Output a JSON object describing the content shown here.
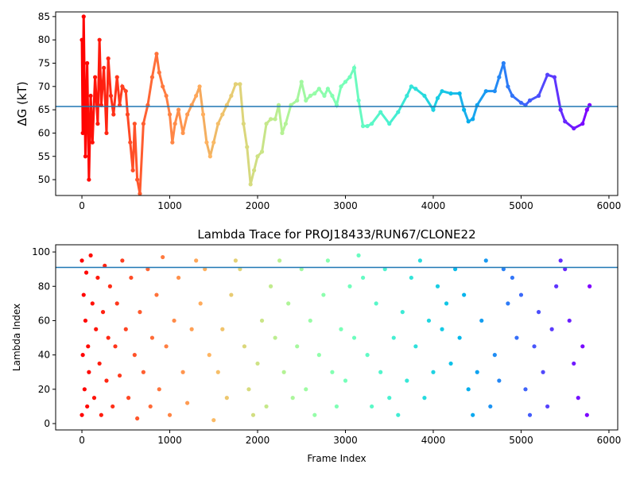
{
  "chart_data": [
    {
      "type": "scatter",
      "ylabel": "ΔG (kT)",
      "colormap": "rainbow_r",
      "hline": 65.7,
      "hline_color": "#1f77b4",
      "xlim": [
        -299,
        6100
      ],
      "ylim": [
        46.6,
        86.0
      ],
      "xticks": [
        0,
        1000,
        2000,
        3000,
        4000,
        5000,
        6000
      ],
      "yticks": [
        50,
        55,
        60,
        65,
        70,
        75,
        80,
        85
      ],
      "x": [
        0,
        10,
        20,
        30,
        40,
        50,
        60,
        80,
        100,
        120,
        150,
        180,
        200,
        220,
        250,
        280,
        300,
        330,
        360,
        400,
        430,
        460,
        500,
        520,
        550,
        580,
        600,
        630,
        660,
        700,
        750,
        800,
        850,
        880,
        920,
        960,
        1000,
        1030,
        1060,
        1100,
        1150,
        1200,
        1250,
        1300,
        1340,
        1380,
        1420,
        1460,
        1500,
        1550,
        1600,
        1650,
        1700,
        1750,
        1800,
        1840,
        1880,
        1920,
        1960,
        2000,
        2050,
        2100,
        2150,
        2200,
        2240,
        2280,
        2320,
        2380,
        2450,
        2500,
        2550,
        2600,
        2650,
        2700,
        2760,
        2800,
        2850,
        2900,
        2950,
        3000,
        3050,
        3100,
        3150,
        3200,
        3250,
        3300,
        3400,
        3500,
        3600,
        3700,
        3750,
        3800,
        3900,
        4000,
        4050,
        4100,
        4200,
        4300,
        4350,
        4400,
        4450,
        4500,
        4600,
        4700,
        4750,
        4800,
        4850,
        4900,
        5000,
        5050,
        5100,
        5200,
        5300,
        5380,
        5450,
        5500,
        5600,
        5700,
        5750,
        5780
      ],
      "values": [
        80,
        60,
        85,
        70,
        55,
        65,
        75,
        50,
        68,
        58,
        72,
        62,
        80,
        66,
        74,
        60,
        76,
        68,
        64,
        72,
        66,
        70,
        69,
        64,
        58,
        52,
        62,
        50,
        47,
        62,
        66,
        72,
        77,
        73,
        70,
        68,
        64,
        58,
        62,
        65,
        60,
        64,
        66,
        68,
        70,
        64,
        58,
        55,
        58,
        62,
        64,
        66,
        68,
        70.5,
        70.5,
        62,
        57,
        49,
        52,
        55,
        56,
        62,
        63,
        63,
        66,
        60,
        62,
        66,
        67,
        71,
        67,
        68,
        68.5,
        69.5,
        68,
        69.5,
        68,
        66,
        70,
        71,
        72,
        74,
        67,
        61.5,
        61.5,
        62,
        64.5,
        62,
        64.5,
        68,
        70,
        69.5,
        68,
        65,
        67.5,
        69,
        68.5,
        68.5,
        65,
        62.5,
        63,
        66,
        69,
        69,
        72,
        75,
        70,
        68,
        66.5,
        66,
        67,
        68,
        72.5,
        72,
        65,
        62.5,
        61,
        62,
        65,
        66
      ]
    },
    {
      "type": "scatter",
      "title": "Lambda Trace for PROJ18433/RUN67/CLONE22",
      "xlabel": "Frame Index",
      "ylabel": "Lambda Index",
      "colormap": "rainbow_r",
      "hline": 91,
      "hline_color": "#1f77b4",
      "xlim": [
        -299,
        6100
      ],
      "ylim": [
        -3.7,
        104.2
      ],
      "xticks": [
        0,
        1000,
        2000,
        3000,
        4000,
        5000,
        6000
      ],
      "yticks": [
        0,
        20,
        40,
        60,
        80,
        100
      ],
      "x": [
        0,
        0,
        10,
        20,
        30,
        40,
        50,
        60,
        70,
        80,
        100,
        120,
        140,
        160,
        180,
        200,
        220,
        240,
        260,
        280,
        300,
        320,
        350,
        380,
        400,
        430,
        460,
        500,
        530,
        560,
        600,
        630,
        660,
        700,
        750,
        780,
        800,
        850,
        880,
        920,
        960,
        1000,
        1050,
        1100,
        1150,
        1200,
        1250,
        1300,
        1350,
        1400,
        1450,
        1500,
        1550,
        1600,
        1650,
        1700,
        1750,
        1800,
        1850,
        1900,
        1950,
        2000,
        2050,
        2100,
        2150,
        2200,
        2250,
        2300,
        2350,
        2400,
        2450,
        2500,
        2550,
        2600,
        2650,
        2700,
        2750,
        2800,
        2850,
        2900,
        2950,
        3000,
        3050,
        3100,
        3150,
        3200,
        3250,
        3300,
        3350,
        3400,
        3450,
        3500,
        3550,
        3600,
        3650,
        3700,
        3750,
        3800,
        3850,
        3900,
        3950,
        4000,
        4050,
        4100,
        4150,
        4200,
        4250,
        4300,
        4350,
        4400,
        4450,
        4500,
        4550,
        4600,
        4650,
        4700,
        4750,
        4800,
        4850,
        4900,
        4950,
        5000,
        5050,
        5100,
        5150,
        5200,
        5250,
        5300,
        5350,
        5400,
        5450,
        5500,
        5550,
        5600,
        5650,
        5700,
        5750,
        5780
      ],
      "values": [
        5,
        95,
        40,
        75,
        20,
        60,
        88,
        10,
        45,
        30,
        98,
        70,
        15,
        55,
        85,
        35,
        5,
        65,
        92,
        25,
        50,
        80,
        10,
        45,
        70,
        28,
        95,
        55,
        15,
        85,
        40,
        3,
        65,
        30,
        90,
        10,
        50,
        75,
        20,
        97,
        45,
        5,
        60,
        85,
        30,
        12,
        55,
        95,
        70,
        90,
        40,
        2,
        30,
        55,
        15,
        75,
        95,
        90,
        45,
        20,
        5,
        35,
        60,
        10,
        80,
        50,
        95,
        30,
        70,
        15,
        45,
        90,
        20,
        60,
        5,
        40,
        75,
        95,
        30,
        10,
        55,
        25,
        80,
        50,
        98,
        85,
        40,
        10,
        70,
        30,
        90,
        15,
        50,
        5,
        65,
        25,
        85,
        45,
        95,
        15,
        60,
        30,
        80,
        55,
        70,
        35,
        90,
        50,
        75,
        20,
        5,
        30,
        60,
        95,
        10,
        40,
        25,
        90,
        70,
        85,
        50,
        75,
        20,
        5,
        45,
        65,
        30,
        10,
        55,
        80,
        95,
        90,
        60,
        35,
        15,
        45,
        5,
        80
      ]
    }
  ]
}
